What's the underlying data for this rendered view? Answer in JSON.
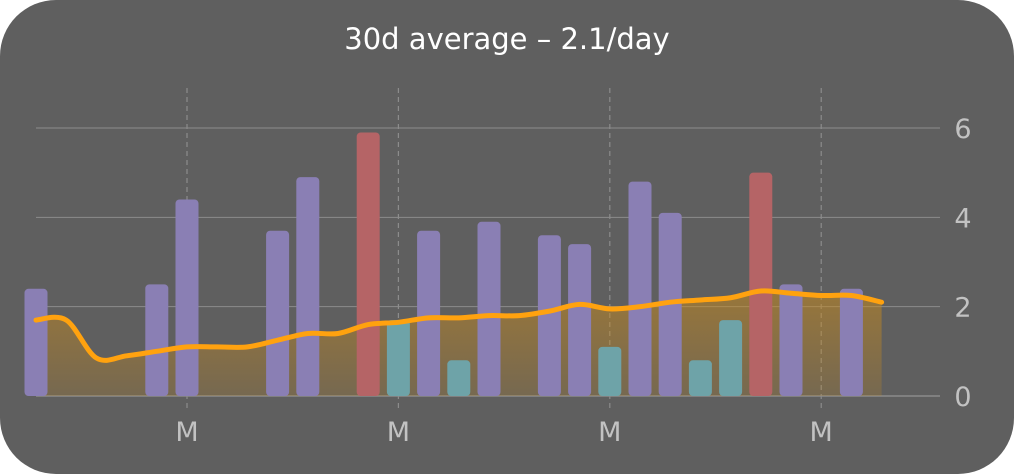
{
  "card": {
    "title": "30d average – 2.1/day"
  },
  "colors": {
    "background": "#5f5f5f",
    "bar_default": "#8a7fb4",
    "bar_high": "#b56466",
    "bar_low": "#6ea3a8",
    "trend_line": "#ffa20f",
    "area_fill": "#c88a1c",
    "gridline": "#8c8c8c",
    "label": "#c2c2c2"
  },
  "chart_data": {
    "type": "bar",
    "title": "30d average – 2.1/day",
    "x_tick_labels": [
      "M",
      "M",
      "M",
      "M"
    ],
    "x_tick_days": [
      5,
      12,
      19,
      26
    ],
    "ylim": [
      0,
      7
    ],
    "y_ticks": [
      0,
      2,
      4,
      6
    ],
    "grid": true,
    "y_axis_position": "right",
    "days": [
      0,
      1,
      2,
      3,
      4,
      5,
      6,
      7,
      8,
      9,
      10,
      11,
      12,
      13,
      14,
      15,
      16,
      17,
      18,
      19,
      20,
      21,
      22,
      23,
      24,
      25,
      26,
      27,
      28
    ],
    "series": [
      {
        "values": [
          2.4,
          0,
          0,
          0,
          2.5,
          4.4,
          0,
          0,
          3.7,
          4.9,
          0,
          5.9,
          1.7,
          3.7,
          0.8,
          3.9,
          0,
          3.6,
          3.4,
          1.1,
          4.8,
          4.1,
          0.8,
          1.7,
          5.0,
          2.5,
          0,
          2.4,
          0
        ],
        "color_levels": [
          "default",
          "default",
          "default",
          "default",
          "default",
          "default",
          "default",
          "default",
          "default",
          "default",
          "default",
          "high",
          "low",
          "default",
          "low",
          "default",
          "default",
          "default",
          "default",
          "low",
          "default",
          "default",
          "low",
          "low",
          "high",
          "default",
          "default",
          "default",
          "default"
        ]
      },
      {
        "type": "line",
        "values": [
          1.7,
          1.7,
          0.85,
          0.9,
          1.0,
          1.1,
          1.1,
          1.1,
          1.25,
          1.4,
          1.4,
          1.6,
          1.65,
          1.75,
          1.75,
          1.8,
          1.8,
          1.9,
          2.05,
          1.95,
          2.0,
          2.1,
          2.15,
          2.2,
          2.35,
          2.3,
          2.25,
          2.25,
          2.1
        ]
      }
    ]
  }
}
